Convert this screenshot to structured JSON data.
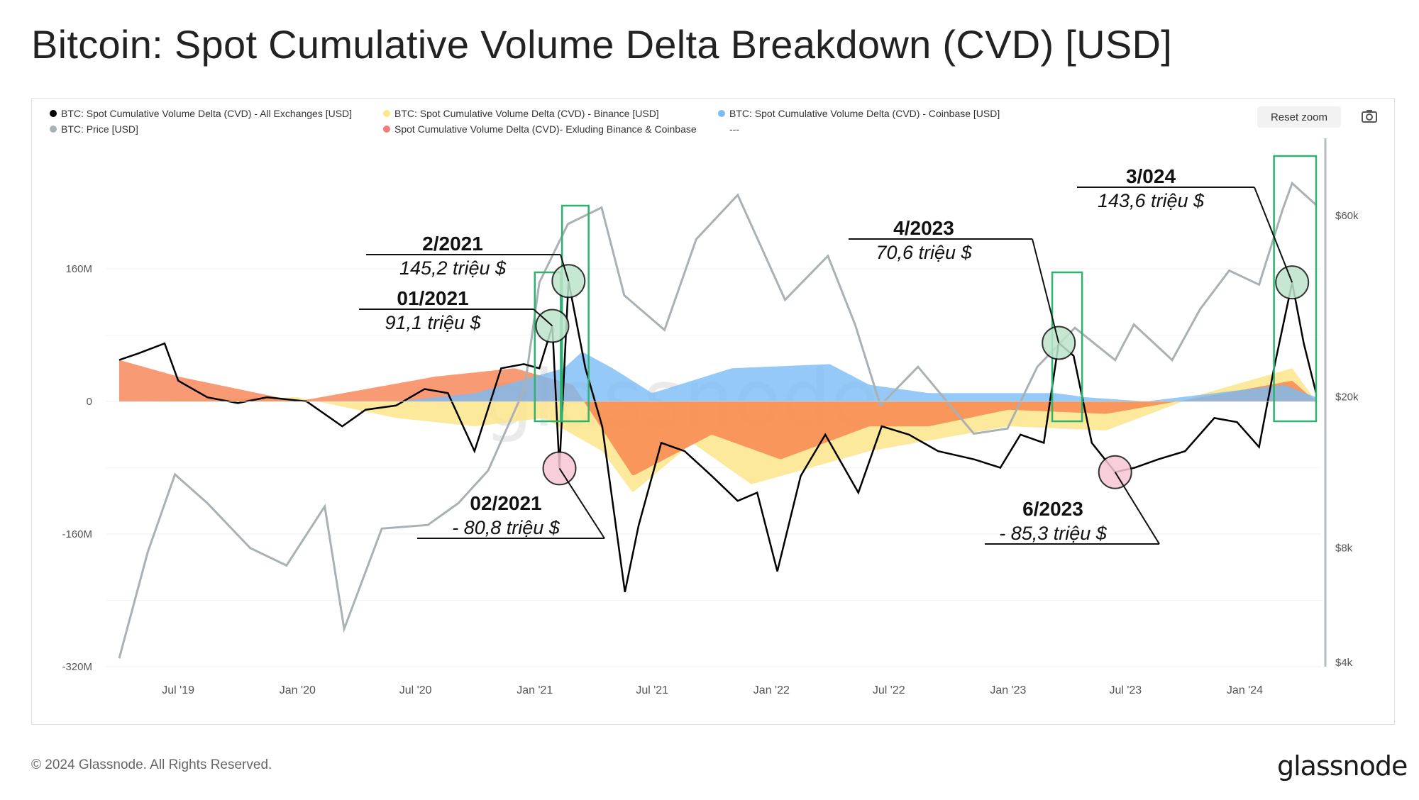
{
  "title": "Bitcoin: Spot Cumulative Volume Delta Breakdown (CVD) [USD]",
  "legend": [
    {
      "label": "BTC: Spot Cumulative Volume Delta (CVD) - All Exchanges [USD]",
      "color": "#000000"
    },
    {
      "label": "BTC: Spot Cumulative Volume Delta (CVD) - Binance [USD]",
      "color": "#fde58a"
    },
    {
      "label": "BTC: Spot Cumulative Volume Delta (CVD) - Coinbase [USD]",
      "color": "#7bbcf5"
    },
    {
      "label": "BTC: Price [USD]",
      "color": "#aab1b4"
    },
    {
      "label": "Spot Cumulative Volume Delta (CVD)- Exluding Binance & Coinbase",
      "color": "#f57a7a"
    },
    {
      "label": "---",
      "color": ""
    }
  ],
  "controls": {
    "reset_zoom": "Reset zoom",
    "camera_icon": "camera-icon"
  },
  "footer": {
    "copyright": "© 2024 Glassnode. All Rights Reserved.",
    "brand": "glassnode"
  },
  "colors": {
    "cvd_all": "#000000",
    "binance": "#fde58a",
    "coinbase": "#7bbcf5",
    "others": "#f57a45",
    "price": "#aab1b4",
    "box": "#2db36f",
    "circle_pos": "#bde5cc",
    "circle_neg": "#f7c6d4"
  },
  "chart_data": {
    "type": "line",
    "x_ticks": [
      "Jul '19",
      "Jan '20",
      "Jul '20",
      "Jan '21",
      "Jul '21",
      "Jan '22",
      "Jul '22",
      "Jan '23",
      "Jul '23",
      "Jan '24"
    ],
    "x_range": [
      "2019-04-01",
      "2024-04-20"
    ],
    "y_left": {
      "ticks": [
        "160M",
        "0",
        "-160M",
        "-320M"
      ],
      "tick_values": [
        160,
        0,
        -160,
        -320
      ],
      "range": [
        -320,
        220
      ],
      "unit": "M USD"
    },
    "y_right": {
      "ticks": [
        "$60k",
        "$20k",
        "$8k",
        "$4k"
      ],
      "tick_values": [
        60000,
        20000,
        8000,
        4000
      ],
      "scale": "log"
    },
    "series": [
      {
        "name": "BTC: Spot Cumulative Volume Delta (CVD) - All Exchanges [USD]",
        "axis": "left",
        "x": [
          "2019-04-01",
          "2019-05-01",
          "2019-06-10",
          "2019-07-01",
          "2019-08-15",
          "2019-10-01",
          "2019-11-15",
          "2020-01-15",
          "2020-03-10",
          "2020-04-15",
          "2020-06-01",
          "2020-07-15",
          "2020-08-20",
          "2020-09-30",
          "2020-11-10",
          "2020-12-15",
          "2021-01-08",
          "2021-01-28",
          "2021-02-08",
          "2021-02-22",
          "2021-03-20",
          "2021-04-15",
          "2021-05-20",
          "2021-06-10",
          "2021-07-15",
          "2021-08-20",
          "2021-10-01",
          "2021-11-10",
          "2021-12-10",
          "2022-01-10",
          "2022-02-15",
          "2022-03-25",
          "2022-05-15",
          "2022-06-20",
          "2022-08-01",
          "2022-09-15",
          "2022-11-10",
          "2022-12-20",
          "2023-01-20",
          "2023-02-25",
          "2023-03-20",
          "2023-04-12",
          "2023-05-10",
          "2023-06-15",
          "2023-07-15",
          "2023-08-20",
          "2023-10-01",
          "2023-11-15",
          "2023-12-20",
          "2024-01-23",
          "2024-02-15",
          "2024-03-14",
          "2024-04-01",
          "2024-04-20"
        ],
        "y": [
          50,
          58,
          70,
          25,
          5,
          -2,
          5,
          0,
          -30,
          -10,
          -5,
          15,
          10,
          -60,
          40,
          45,
          40,
          91.1,
          -80.8,
          145.2,
          40,
          -30,
          -230,
          -150,
          -50,
          -60,
          -90,
          -120,
          -110,
          -205,
          -90,
          -40,
          -110,
          -30,
          -40,
          -60,
          -70,
          -80,
          -40,
          -50,
          70.6,
          55,
          -50,
          -85.3,
          -80,
          -70,
          -60,
          -20,
          -25,
          -55,
          40,
          143.6,
          70,
          10
        ]
      },
      {
        "name": "BTC: Price [USD]",
        "axis": "right",
        "x": [
          "2019-04-01",
          "2019-05-15",
          "2019-06-26",
          "2019-08-15",
          "2019-10-20",
          "2019-12-15",
          "2020-02-12",
          "2020-03-13",
          "2020-05-10",
          "2020-07-20",
          "2020-09-05",
          "2020-10-21",
          "2020-12-16",
          "2021-01-08",
          "2021-02-21",
          "2021-04-14",
          "2021-05-19",
          "2021-07-20",
          "2021-09-07",
          "2021-11-10",
          "2022-01-22",
          "2022-03-29",
          "2022-05-10",
          "2022-06-18",
          "2022-08-15",
          "2022-11-09",
          "2022-12-31",
          "2023-02-15",
          "2023-04-14",
          "2023-06-15",
          "2023-07-14",
          "2023-09-11",
          "2023-10-24",
          "2023-12-08",
          "2024-01-23",
          "2024-02-28",
          "2024-03-14",
          "2024-04-20"
        ],
        "y": [
          4100,
          7800,
          12500,
          10500,
          8000,
          7200,
          10300,
          4900,
          9000,
          9200,
          10500,
          12800,
          21000,
          40000,
          57000,
          63000,
          37000,
          30000,
          52000,
          68000,
          36000,
          47000,
          31000,
          19000,
          24000,
          16000,
          16500,
          24000,
          30400,
          25000,
          31000,
          25000,
          34000,
          43000,
          39500,
          62000,
          73000,
          64000
        ]
      },
      {
        "name": "BTC: Spot Cumulative Volume Delta (CVD) - Coinbase [USD]",
        "axis": "left",
        "x": [
          "2019-04-01",
          "2020-06-01",
          "2020-10-01",
          "2021-02-15",
          "2021-03-15",
          "2021-05-01",
          "2021-07-01",
          "2021-11-01",
          "2022-04-01",
          "2022-06-01",
          "2022-09-01",
          "2023-03-15",
          "2023-05-01",
          "2023-08-01",
          "2024-03-01",
          "2024-04-20"
        ],
        "y": [
          0,
          0,
          10,
          40,
          60,
          40,
          10,
          40,
          45,
          20,
          10,
          10,
          5,
          0,
          20,
          5
        ]
      },
      {
        "name": "BTC: Spot Cumulative Volume Delta (CVD) - Binance [USD]",
        "axis": "left",
        "x": [
          "2019-04-01",
          "2020-01-01",
          "2020-06-01",
          "2020-10-01",
          "2021-01-15",
          "2021-04-15",
          "2021-06-01",
          "2021-09-01",
          "2021-12-01",
          "2022-06-01",
          "2023-01-01",
          "2023-06-01",
          "2023-11-01",
          "2024-03-14",
          "2024-04-20"
        ],
        "y": [
          0,
          5,
          -20,
          -30,
          -20,
          -60,
          -110,
          -50,
          -100,
          -60,
          -30,
          -35,
          10,
          40,
          0
        ]
      },
      {
        "name": "Spot Cumulative Volume Delta (CVD)- Exluding Binance & Coinbase",
        "axis": "left",
        "x": [
          "2019-04-01",
          "2019-07-01",
          "2020-01-01",
          "2020-08-01",
          "2020-12-01",
          "2021-03-01",
          "2021-06-01",
          "2021-10-01",
          "2022-01-15",
          "2022-06-01",
          "2022-09-01",
          "2023-01-01",
          "2023-06-01",
          "2023-12-01",
          "2024-03-14",
          "2024-04-20"
        ],
        "y": [
          50,
          30,
          0,
          30,
          40,
          20,
          -90,
          -40,
          -70,
          -30,
          -30,
          -10,
          -15,
          10,
          25,
          0
        ]
      }
    ],
    "annotations": [
      {
        "title": "01/2021",
        "value": "91,1 triệu $",
        "x": "2021-01-28",
        "y": 91.1,
        "kind": "peak"
      },
      {
        "title": "2/2021",
        "value": "145,2 triệu $",
        "x": "2021-02-22",
        "y": 145.2,
        "kind": "peak"
      },
      {
        "title": "02/2021",
        "value": "- 80,8 triệu $",
        "x": "2021-02-08",
        "y": -80.8,
        "kind": "trough"
      },
      {
        "title": "4/2023",
        "value": "70,6 triệu $",
        "x": "2023-03-20",
        "y": 70.6,
        "kind": "peak"
      },
      {
        "title": "6/2023",
        "value": "- 85,3 triệu $",
        "x": "2023-06-15",
        "y": -85.3,
        "kind": "trough"
      },
      {
        "title": "3/024",
        "value": "143,6 triệu $",
        "x": "2024-03-14",
        "y": 143.6,
        "kind": "peak"
      }
    ],
    "highlight_boxes": [
      [
        "2021-01-01",
        "2021-02-10"
      ],
      [
        "2021-02-12",
        "2021-03-25"
      ],
      [
        "2023-03-10",
        "2023-04-25"
      ],
      [
        "2024-02-15",
        "2024-04-20"
      ]
    ],
    "watermark": "glassnode",
    "grid": true
  }
}
